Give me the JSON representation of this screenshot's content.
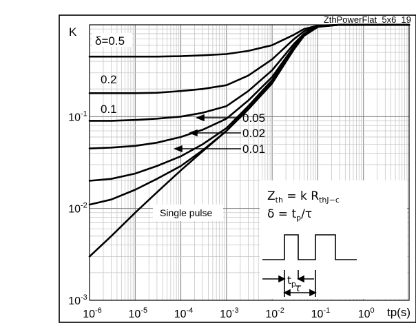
{
  "chart_data": {
    "type": "line",
    "title": "",
    "figure_ref": "ZthPowerFlat_5x6_19",
    "ylabel": "K",
    "xlabel": "tp(s)",
    "x_scale": "log",
    "y_scale": "log",
    "xlim": [
      1e-06,
      10
    ],
    "ylim": [
      0.001,
      1
    ],
    "grid": true,
    "x_ticks": [
      {
        "base": "10",
        "exp": "-6"
      },
      {
        "base": "10",
        "exp": "-5"
      },
      {
        "base": "10",
        "exp": "-4"
      },
      {
        "base": "10",
        "exp": "-3"
      },
      {
        "base": "10",
        "exp": "-2"
      },
      {
        "base": "10",
        "exp": "-1"
      },
      {
        "base": "10",
        "exp": "0"
      }
    ],
    "y_ticks": [
      {
        "base": "10",
        "exp": "-3"
      },
      {
        "base": "10",
        "exp": "-2"
      },
      {
        "base": "10",
        "exp": "-1"
      }
    ],
    "x": [
      1e-06,
      3e-06,
      1e-05,
      3e-05,
      0.0001,
      0.0003,
      0.001,
      0.003,
      0.01,
      0.03,
      0.05,
      0.1,
      0.3,
      1,
      3,
      10
    ],
    "series": [
      {
        "name": "δ=0.5",
        "values": [
          0.45,
          0.45,
          0.45,
          0.45,
          0.455,
          0.465,
          0.48,
          0.52,
          0.6,
          0.78,
          0.9,
          0.98,
          1,
          1,
          1,
          1
        ]
      },
      {
        "name": "0.2",
        "values": [
          0.18,
          0.18,
          0.18,
          0.182,
          0.19,
          0.2,
          0.22,
          0.28,
          0.42,
          0.7,
          0.85,
          0.97,
          1,
          1,
          1,
          1
        ]
      },
      {
        "name": "0.1",
        "values": [
          0.09,
          0.09,
          0.092,
          0.095,
          0.1,
          0.11,
          0.13,
          0.19,
          0.32,
          0.62,
          0.8,
          0.96,
          1,
          1,
          1,
          1
        ]
      },
      {
        "name": "0.05",
        "values": [
          0.045,
          0.046,
          0.048,
          0.052,
          0.06,
          0.072,
          0.095,
          0.15,
          0.27,
          0.58,
          0.78,
          0.96,
          1,
          1,
          1,
          1
        ]
      },
      {
        "name": "0.02",
        "values": [
          0.02,
          0.021,
          0.024,
          0.029,
          0.037,
          0.05,
          0.075,
          0.13,
          0.25,
          0.56,
          0.77,
          0.95,
          1,
          1,
          1,
          1
        ]
      },
      {
        "name": "0.01",
        "values": [
          0.011,
          0.0125,
          0.016,
          0.021,
          0.029,
          0.043,
          0.07,
          0.125,
          0.24,
          0.55,
          0.76,
          0.95,
          1,
          1,
          1,
          1
        ]
      },
      {
        "name": "Single pulse",
        "values": [
          0.003,
          0.005,
          0.009,
          0.015,
          0.026,
          0.042,
          0.07,
          0.12,
          0.23,
          0.54,
          0.76,
          0.95,
          1,
          1,
          1,
          1
        ]
      }
    ],
    "labels": {
      "delta_05": "δ=0.5",
      "v02": "0.2",
      "v01": "0.1",
      "v005": "0.05",
      "v002": "0.02",
      "v001": "0.01",
      "single_pulse": "Single pulse"
    },
    "formula": {
      "line1_main": "Z",
      "line1_sub": "th",
      "line1_rest": " = k R",
      "line1_sub2": "thJ−c",
      "line2_main": "δ = t",
      "line2_sub": "p",
      "line2_rest": "/τ",
      "tp_label_main": "t",
      "tp_label_sub": "p",
      "tau_label": "τ"
    },
    "header_text": "gle pulse"
  }
}
